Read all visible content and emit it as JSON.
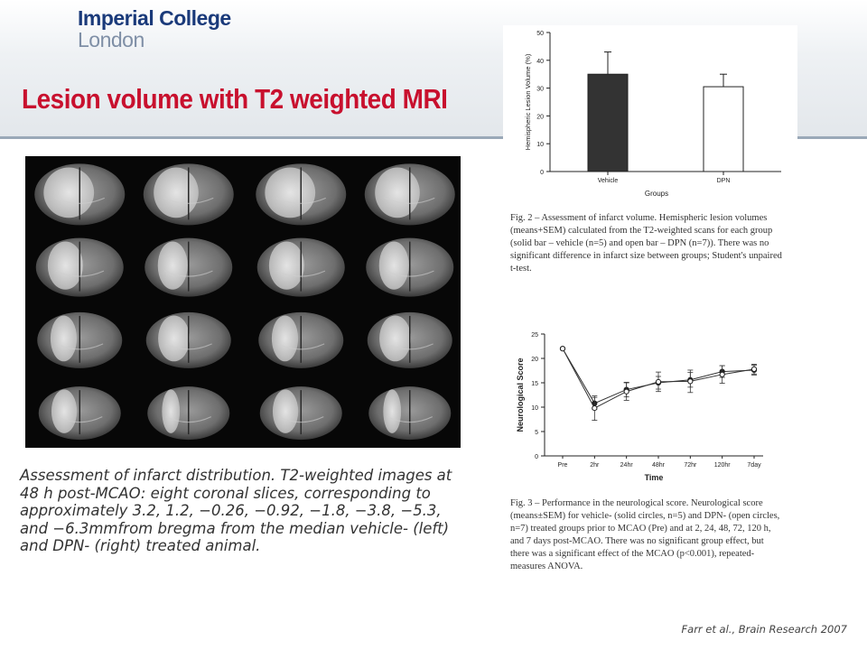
{
  "header": {
    "logo_line1": "Imperial College",
    "logo_line2": "London",
    "title": "Lesion volume with T2 weighted MRI"
  },
  "mri_figure": {
    "columns": 4,
    "rows": 4
  },
  "caption_main": "Assessment of infarct distribution. T2-weighted images at 48 h post-MCAO: eight coronal slices, corresponding to approximately 3.2, 1.2, −0.26, −0.92, −1.8, −3.8, −5.3, and −6.3mmfrom bregma from the median vehicle- (left) and DPN- (right) treated animal.",
  "fig2_caption": "Fig. 2 – Assessment of infarct volume. Hemispheric lesion volumes (means+SEM) calculated from the T2-weighted scans for each group (solid bar – vehicle (n=5) and open bar – DPN (n=7)). There was no significant difference in infarct size between groups; Student's unpaired t-test.",
  "fig3_caption": "Fig. 3 – Performance in the neurological score. Neurological score (means±SEM) for vehicle- (solid circles, n=5) and DPN- (open circles, n=7) treated groups prior to MCAO (Pre) and at 2, 24, 48, 72, 120 h, and 7 days post-MCAO. There was no significant group effect, but there was a significant effect of the MCAO (p<0.001), repeated-measures ANOVA.",
  "reference": "Farr et al., Brain Research 2007",
  "colors": {
    "title_red": "#c8102e",
    "logo_blue": "#1a3a7a",
    "logo_grey": "#7f8fa6",
    "rule": "#9aa9b8"
  },
  "chart_data": [
    {
      "type": "bar",
      "categories": [
        "Vehicle",
        "DPN"
      ],
      "values": [
        35,
        30.5
      ],
      "errors": [
        8,
        4.5
      ],
      "fills": [
        "solid",
        "open"
      ],
      "xlabel": "Groups",
      "ylabel": "Hemispheric Lesion Volume (%)",
      "ylim": [
        0,
        50
      ],
      "yticks": [
        "0",
        "10",
        "20",
        "30",
        "40",
        "50"
      ]
    },
    {
      "type": "line",
      "categories": [
        "Pre",
        "2hr",
        "24hr",
        "48hr",
        "72hr",
        "120hr",
        "7day"
      ],
      "series": [
        {
          "marker": "solid",
          "values": [
            22,
            10.8,
            13.6,
            15,
            15.6,
            17.3,
            17.6
          ],
          "errors": [
            0,
            1.2,
            1.5,
            1.3,
            1.5,
            1.2,
            1.0
          ]
        },
        {
          "marker": "open",
          "values": [
            22,
            9.8,
            13.2,
            15.2,
            15.3,
            16.7,
            17.8
          ],
          "errors": [
            0,
            2.5,
            1.8,
            2.0,
            2.3,
            1.8,
            1.0
          ]
        }
      ],
      "xlabel": "Time",
      "ylabel": "Neurological Score",
      "ylim": [
        0,
        25
      ],
      "yticks": [
        "0",
        "5",
        "10",
        "15",
        "20",
        "25"
      ]
    }
  ]
}
